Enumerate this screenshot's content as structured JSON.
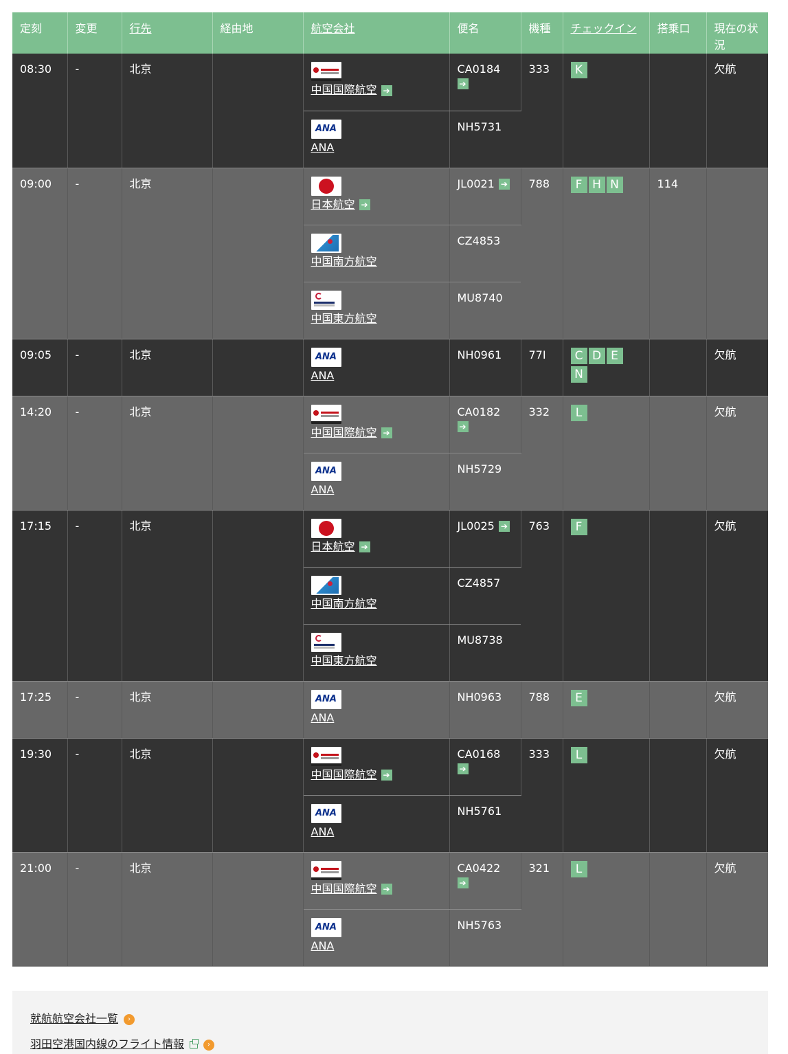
{
  "headers": [
    "定刻",
    "変更",
    "行先",
    "経由地",
    "航空会社",
    "便名",
    "機種",
    "チェックイン",
    "搭乗口",
    "現在の状況"
  ],
  "flights": [
    {
      "time": "08:30",
      "change": "-",
      "dest": "北京",
      "via": "",
      "aircraft": "333",
      "counters": [
        "K"
      ],
      "gate": "",
      "status": "欠航",
      "legs": [
        {
          "airline": "中国国際航空",
          "logo": "ca",
          "flight": "CA0184",
          "arrow": true,
          "flight_arrow": true
        },
        {
          "airline": "ANA",
          "logo": "ana",
          "flight": "NH5731",
          "arrow": false,
          "flight_arrow": false
        }
      ]
    },
    {
      "time": "09:00",
      "change": "-",
      "dest": "北京",
      "via": "",
      "aircraft": "788",
      "counters": [
        "F",
        "H",
        "N"
      ],
      "gate": "114",
      "status": "",
      "legs": [
        {
          "airline": "日本航空",
          "logo": "jl",
          "flight": "JL0021",
          "arrow": true,
          "flight_arrow": true
        },
        {
          "airline": "中国南方航空",
          "logo": "cz",
          "flight": "CZ4853",
          "arrow": false,
          "flight_arrow": false
        },
        {
          "airline": "中国東方航空",
          "logo": "mu",
          "flight": "MU8740",
          "arrow": false,
          "flight_arrow": false
        }
      ]
    },
    {
      "time": "09:05",
      "change": "-",
      "dest": "北京",
      "via": "",
      "aircraft": "77I",
      "counters": [
        "C",
        "D",
        "E",
        "N"
      ],
      "gate": "",
      "status": "欠航",
      "legs": [
        {
          "airline": "ANA",
          "logo": "ana",
          "flight": "NH0961",
          "arrow": false,
          "flight_arrow": false
        }
      ]
    },
    {
      "time": "14:20",
      "change": "-",
      "dest": "北京",
      "via": "",
      "aircraft": "332",
      "counters": [
        "L"
      ],
      "gate": "",
      "status": "欠航",
      "legs": [
        {
          "airline": "中国国際航空",
          "logo": "ca",
          "flight": "CA0182",
          "arrow": true,
          "flight_arrow": true
        },
        {
          "airline": "ANA",
          "logo": "ana",
          "flight": "NH5729",
          "arrow": false,
          "flight_arrow": false
        }
      ]
    },
    {
      "time": "17:15",
      "change": "-",
      "dest": "北京",
      "via": "",
      "aircraft": "763",
      "counters": [
        "F"
      ],
      "gate": "",
      "status": "欠航",
      "legs": [
        {
          "airline": "日本航空",
          "logo": "jl",
          "flight": "JL0025",
          "arrow": true,
          "flight_arrow": true
        },
        {
          "airline": "中国南方航空",
          "logo": "cz",
          "flight": "CZ4857",
          "arrow": false,
          "flight_arrow": false
        },
        {
          "airline": "中国東方航空",
          "logo": "mu",
          "flight": "MU8738",
          "arrow": false,
          "flight_arrow": false
        }
      ]
    },
    {
      "time": "17:25",
      "change": "-",
      "dest": "北京",
      "via": "",
      "aircraft": "788",
      "counters": [
        "E"
      ],
      "gate": "",
      "status": "欠航",
      "legs": [
        {
          "airline": "ANA",
          "logo": "ana",
          "flight": "NH0963",
          "arrow": false,
          "flight_arrow": false
        }
      ]
    },
    {
      "time": "19:30",
      "change": "-",
      "dest": "北京",
      "via": "",
      "aircraft": "333",
      "counters": [
        "L"
      ],
      "gate": "",
      "status": "欠航",
      "legs": [
        {
          "airline": "中国国際航空",
          "logo": "ca",
          "flight": "CA0168",
          "arrow": true,
          "flight_arrow": true
        },
        {
          "airline": "ANA",
          "logo": "ana",
          "flight": "NH5761",
          "arrow": false,
          "flight_arrow": false
        }
      ]
    },
    {
      "time": "21:00",
      "change": "-",
      "dest": "北京",
      "via": "",
      "aircraft": "321",
      "counters": [
        "L"
      ],
      "gate": "",
      "status": "欠航",
      "legs": [
        {
          "airline": "中国国際航空",
          "logo": "ca",
          "flight": "CA0422",
          "arrow": true,
          "flight_arrow": true
        },
        {
          "airline": "ANA",
          "logo": "ana",
          "flight": "NH5763",
          "arrow": false,
          "flight_arrow": false
        }
      ]
    }
  ],
  "footer": {
    "link1": "就航航空会社一覧",
    "link2": "羽田空港国内線のフライト情報"
  },
  "colors": {
    "header_bg": "#7dbf90",
    "row_dark": "#333333",
    "row_light": "#676767",
    "accent": "#7dbf90",
    "bullet": "#f29a2e"
  },
  "icons": {
    "arrow": "arrow-right-icon",
    "external": "external-window-icon",
    "bullet": "circle-chevron-icon"
  }
}
